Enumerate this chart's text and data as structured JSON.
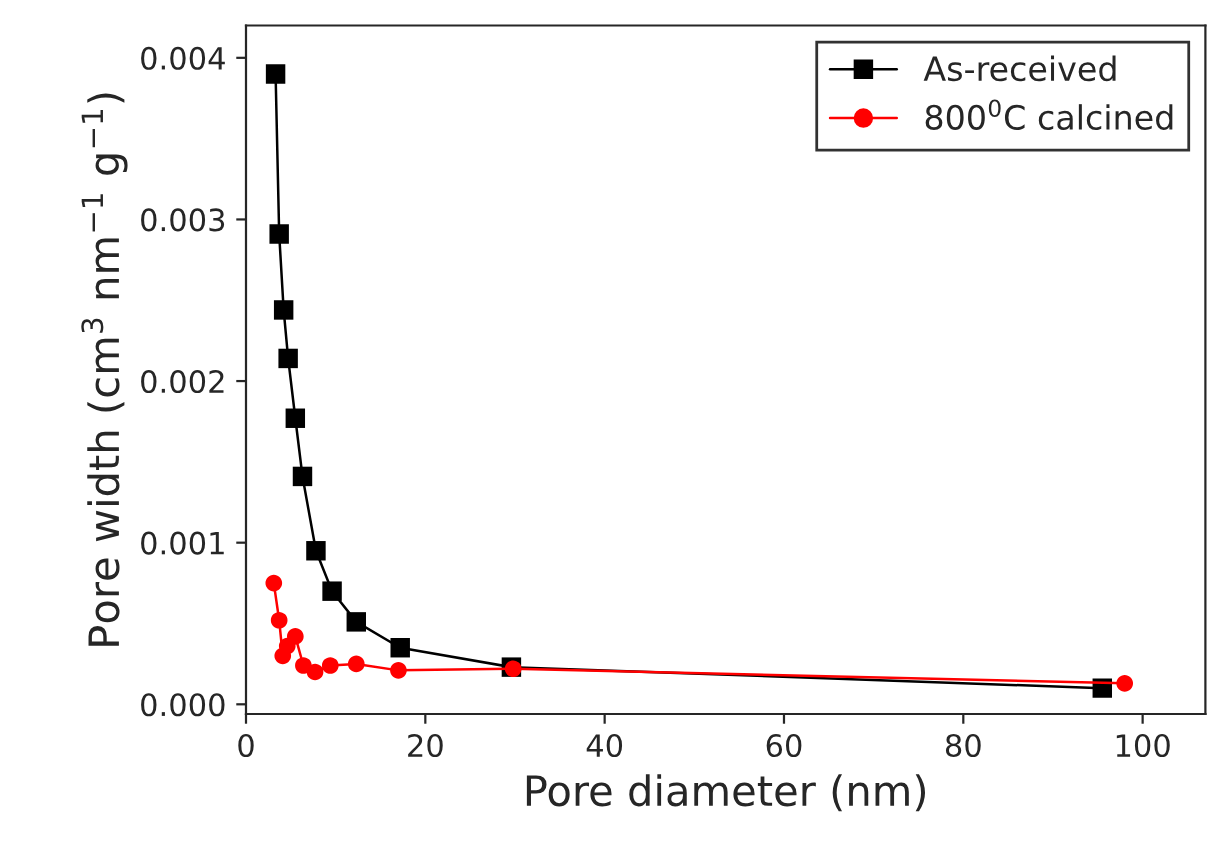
{
  "chart_data": {
    "type": "line",
    "xlabel": "Pore diameter (nm)",
    "ylabel": "Pore width (cm$^{3}$ nm$^{−1}$ g$^{−1}$)",
    "xlim": [
      0,
      107
    ],
    "xticks": [
      0,
      20,
      40,
      60,
      80,
      100
    ],
    "ylim": [
      -6e-05,
      0.0042
    ],
    "yticks": [
      {
        "value": 0,
        "label": "0.000"
      },
      {
        "value": 0.001,
        "label": "0.001"
      },
      {
        "value": 0.002,
        "label": "0.002"
      },
      {
        "value": 0.003,
        "label": "0.003"
      },
      {
        "value": 0.004,
        "label": "0.004"
      }
    ],
    "legend": "top right",
    "grid": false,
    "series": [
      {
        "name": "As-received",
        "color": "#000000",
        "marker": "square",
        "x": [
          3.3,
          3.7,
          4.2,
          4.7,
          5.5,
          6.3,
          7.8,
          9.6,
          12.3,
          17.2,
          29.6,
          95.5
        ],
        "values": [
          0.0039,
          0.00291,
          0.00244,
          0.00214,
          0.00177,
          0.00141,
          0.00095,
          0.0007,
          0.00051,
          0.00035,
          0.00023,
          0.0001
        ]
      },
      {
        "name": "800$^{0}$C calcined",
        "color": "#ff0000",
        "marker": "circle",
        "x": [
          3.1,
          3.7,
          4.1,
          4.6,
          5.5,
          6.4,
          7.7,
          9.4,
          12.3,
          17.0,
          29.8,
          98.0
        ],
        "values": [
          0.00075,
          0.00052,
          0.0003,
          0.00036,
          0.00042,
          0.00024,
          0.0002,
          0.00024,
          0.00025,
          0.00021,
          0.00022,
          0.00013
        ]
      }
    ]
  }
}
